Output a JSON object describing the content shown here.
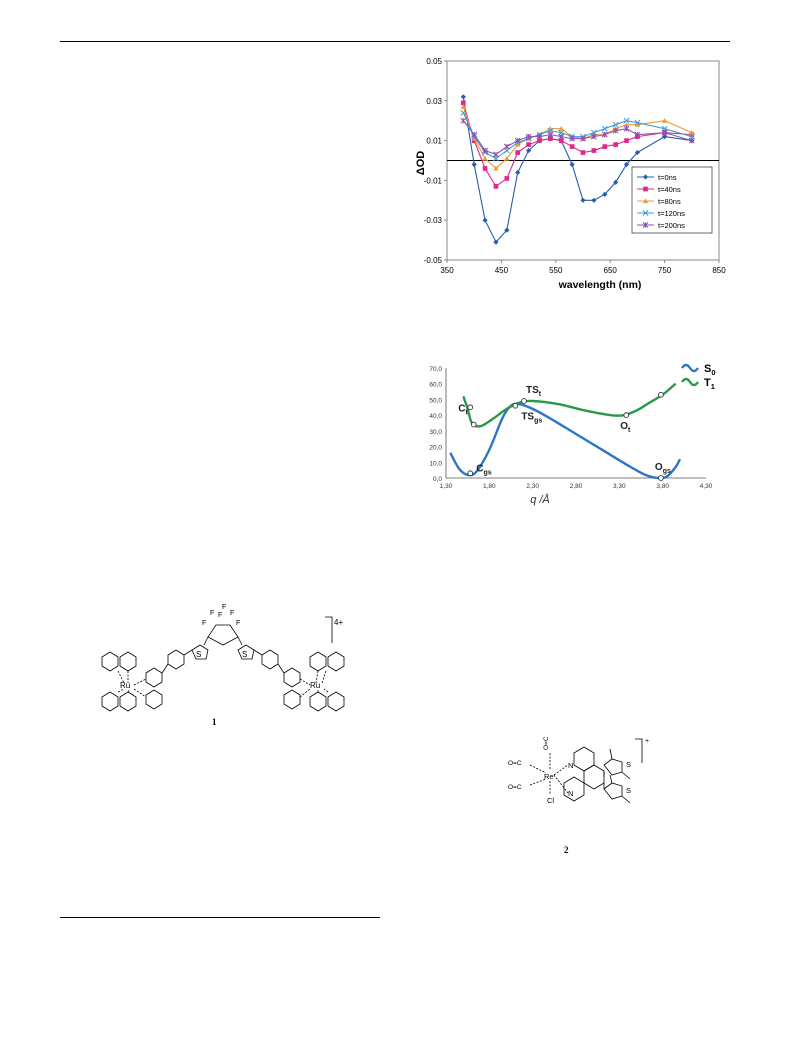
{
  "chart_data": [
    {
      "type": "line",
      "ylabel": "ΔOD",
      "xlabel": "wavelength (nm)",
      "xlim": [
        350,
        850
      ],
      "ylim": [
        -0.05,
        0.05
      ],
      "xticks": [
        "350",
        "450",
        "550",
        "650",
        "750",
        "850"
      ],
      "yticks": [
        "0.05",
        "0.03",
        "0.01",
        "-0.01",
        "-0.03",
        "-0.05"
      ],
      "grid": false,
      "legend_position": "lower-right",
      "series": [
        {
          "name": "t=0ns",
          "color": "#2a5caa",
          "marker": "diamond",
          "x": [
            380,
            400,
            420,
            440,
            460,
            480,
            500,
            520,
            540,
            560,
            580,
            600,
            620,
            640,
            660,
            680,
            700,
            750,
            800
          ],
          "y": [
            0.032,
            -0.002,
            -0.03,
            -0.041,
            -0.035,
            -0.006,
            0.005,
            0.01,
            0.011,
            0.01,
            -0.002,
            -0.02,
            -0.02,
            -0.017,
            -0.011,
            -0.002,
            0.004,
            0.012,
            0.01
          ]
        },
        {
          "name": "t=40ns",
          "color": "#e0288a",
          "marker": "square",
          "x": [
            380,
            400,
            420,
            440,
            460,
            480,
            500,
            520,
            540,
            560,
            580,
            600,
            620,
            640,
            660,
            680,
            700,
            750,
            800
          ],
          "y": [
            0.029,
            0.01,
            -0.004,
            -0.013,
            -0.009,
            0.004,
            0.008,
            0.01,
            0.011,
            0.01,
            0.007,
            0.004,
            0.005,
            0.007,
            0.008,
            0.01,
            0.012,
            0.014,
            0.013
          ]
        },
        {
          "name": "t=80ns",
          "color": "#f29a2e",
          "marker": "triangle",
          "x": [
            380,
            400,
            420,
            440,
            460,
            480,
            500,
            520,
            540,
            560,
            580,
            600,
            620,
            640,
            660,
            680,
            700,
            750,
            800
          ],
          "y": [
            0.027,
            0.011,
            0.001,
            -0.004,
            0.001,
            0.008,
            0.011,
            0.013,
            0.016,
            0.016,
            0.012,
            0.011,
            0.013,
            0.013,
            0.016,
            0.018,
            0.018,
            0.02,
            0.014
          ]
        },
        {
          "name": "t=120ns",
          "color": "#3aa0d6",
          "marker": "x",
          "x": [
            380,
            400,
            420,
            440,
            460,
            480,
            500,
            520,
            540,
            560,
            580,
            600,
            620,
            640,
            660,
            680,
            700,
            750,
            800
          ],
          "y": [
            0.024,
            0.012,
            0.004,
            0.001,
            0.005,
            0.009,
            0.011,
            0.013,
            0.015,
            0.014,
            0.012,
            0.012,
            0.014,
            0.016,
            0.018,
            0.02,
            0.019,
            0.016,
            0.012
          ]
        },
        {
          "name": "t=200ns",
          "color": "#9050b0",
          "marker": "star",
          "x": [
            380,
            400,
            420,
            440,
            460,
            480,
            500,
            520,
            540,
            560,
            580,
            600,
            620,
            640,
            660,
            680,
            700,
            750,
            800
          ],
          "y": [
            0.02,
            0.013,
            0.005,
            0.003,
            0.007,
            0.01,
            0.012,
            0.012,
            0.013,
            0.012,
            0.011,
            0.011,
            0.012,
            0.013,
            0.015,
            0.016,
            0.013,
            0.014,
            0.01
          ]
        }
      ]
    },
    {
      "type": "line",
      "xlabel": "q /Å",
      "ylabel": "",
      "xlim": [
        1.3,
        4.3
      ],
      "ylim": [
        0,
        70
      ],
      "xticks": [
        "1,30",
        "1,80",
        "2,30",
        "2,80",
        "3,30",
        "3,80",
        "4,30"
      ],
      "yticks": [
        "70,0",
        "60,0",
        "50,0",
        "40,0",
        "30,0",
        "20,0",
        "10,0",
        "0,0"
      ],
      "legend_position": "top-right",
      "series": [
        {
          "name": "S",
          "subscript": "0",
          "color": "#2e75c9",
          "x": [
            1.35,
            1.45,
            1.55,
            1.65,
            1.8,
            1.95,
            2.05,
            2.15,
            2.3,
            2.5,
            2.8,
            3.1,
            3.4,
            3.6,
            3.75,
            3.85,
            3.95,
            4.0
          ],
          "y": [
            16,
            6,
            2,
            4,
            18,
            38,
            46,
            47,
            44,
            38,
            28,
            18,
            8,
            2,
            0,
            1,
            7,
            12
          ]
        },
        {
          "name": "T",
          "subscript": "1",
          "color": "#2a9a4a",
          "x": [
            1.5,
            1.55,
            1.6,
            1.7,
            1.85,
            2.0,
            2.15,
            2.3,
            2.6,
            2.9,
            3.2,
            3.35,
            3.5,
            3.65,
            3.8,
            3.95
          ],
          "y": [
            52,
            44,
            35,
            33,
            38,
            44,
            48,
            49,
            47,
            43,
            40,
            40,
            43,
            48,
            53,
            60
          ]
        }
      ],
      "points": [
        {
          "label": "C",
          "sub": "t",
          "q": 1.58,
          "e": 45
        },
        {
          "label": "",
          "sub": "",
          "q": 1.62,
          "e": 34
        },
        {
          "label": "C",
          "sub": "gs",
          "q": 1.58,
          "e": 3
        },
        {
          "label": "TS",
          "sub": "gs",
          "q": 2.1,
          "e": 46
        },
        {
          "label": "TS",
          "sub": "t",
          "q": 2.2,
          "e": 49
        },
        {
          "label": "O",
          "sub": "t",
          "q": 3.38,
          "e": 40
        },
        {
          "label": "",
          "sub": "",
          "q": 3.78,
          "e": 53
        },
        {
          "label": "O",
          "sub": "gs",
          "q": 3.78,
          "e": 0
        }
      ]
    }
  ],
  "compound1": {
    "label": "1",
    "charge": "4+",
    "metal_left": "Ru",
    "metal_right": "Ru",
    "sulfur_left": "S",
    "sulfur_right": "S",
    "fluorine": [
      "F",
      "F",
      "F",
      "F",
      "F",
      "F"
    ]
  },
  "compound2": {
    "label": "2",
    "charge": "+",
    "metal": "Re",
    "chloride": "Cl",
    "nitrogen_top": "N",
    "nitrogen_bottom": "N",
    "sulfur_top": "S",
    "sulfur_bottom": "S",
    "carbonyl": [
      "O=C",
      "O=C",
      "O=C"
    ]
  }
}
